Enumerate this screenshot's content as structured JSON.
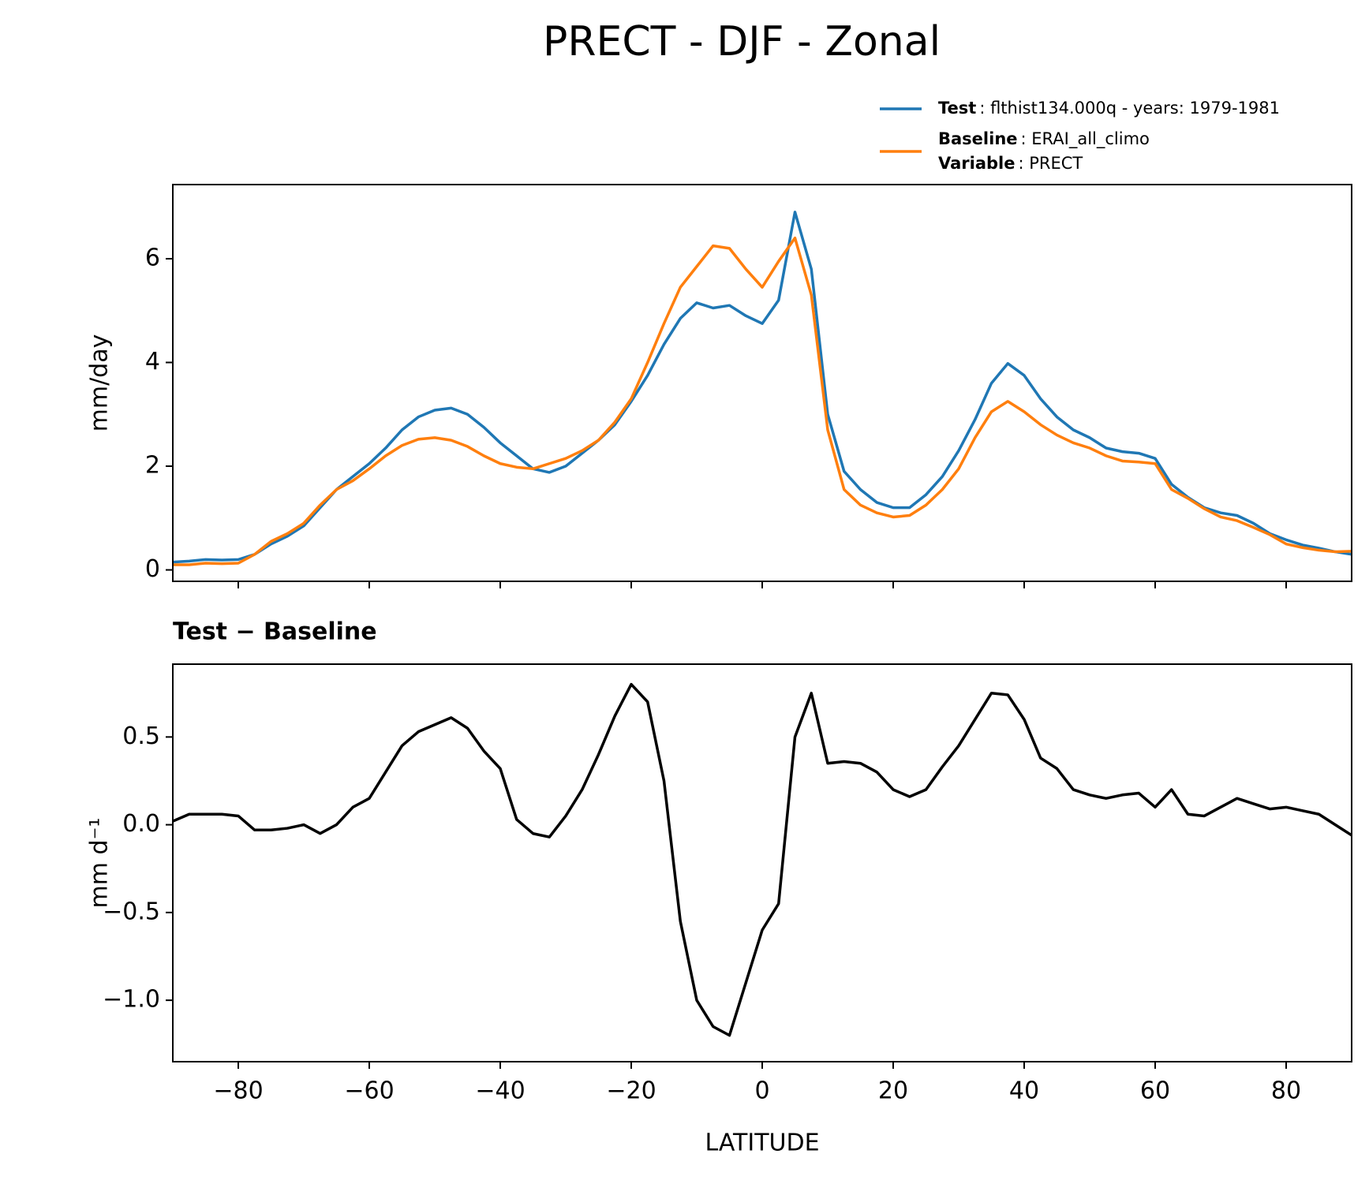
{
  "title": "PRECT - DJF - Zonal",
  "chart_data": [
    {
      "type": "line",
      "legend_corner": "upper right outside",
      "legend_extra": {
        "name": "Variable",
        "text": ": PRECT"
      },
      "ylabel": "mm/day",
      "x": [
        -90,
        -87.5,
        -85,
        -82.5,
        -80,
        -77.5,
        -75,
        -72.5,
        -70,
        -67.5,
        -65,
        -62.5,
        -60,
        -57.5,
        -55,
        -52.5,
        -50,
        -47.5,
        -45,
        -42.5,
        -40,
        -37.5,
        -35,
        -32.5,
        -30,
        -27.5,
        -25,
        -22.5,
        -20,
        -17.5,
        -15,
        -12.5,
        -10,
        -7.5,
        -5,
        -2.5,
        0,
        2.5,
        5,
        7.5,
        10,
        12.5,
        15,
        17.5,
        20,
        22.5,
        25,
        27.5,
        30,
        32.5,
        35,
        37.5,
        40,
        42.5,
        45,
        47.5,
        50,
        52.5,
        55,
        57.5,
        60,
        62.5,
        65,
        67.5,
        70,
        72.5,
        75,
        77.5,
        80,
        82.5,
        85,
        87.5,
        90
      ],
      "series": [
        {
          "name": "Test",
          "legend_text": ": flthist134.000q - years: 1979-1981",
          "color": "#1f77b4",
          "values": [
            0.15,
            0.17,
            0.2,
            0.19,
            0.2,
            0.3,
            0.5,
            0.65,
            0.85,
            1.2,
            1.55,
            1.8,
            2.05,
            2.35,
            2.7,
            2.95,
            3.08,
            3.12,
            3.0,
            2.75,
            2.45,
            2.2,
            1.95,
            1.88,
            2.0,
            2.25,
            2.5,
            2.8,
            3.25,
            3.75,
            4.35,
            4.85,
            5.15,
            5.05,
            5.1,
            4.9,
            4.75,
            5.2,
            6.9,
            5.8,
            3.0,
            1.9,
            1.55,
            1.3,
            1.2,
            1.2,
            1.45,
            1.8,
            2.3,
            2.9,
            3.6,
            3.98,
            3.75,
            3.3,
            2.95,
            2.7,
            2.55,
            2.35,
            2.28,
            2.25,
            2.15,
            1.65,
            1.4,
            1.2,
            1.1,
            1.05,
            0.9,
            0.7,
            0.58,
            0.48,
            0.42,
            0.35,
            0.3
          ]
        },
        {
          "name": "Baseline",
          "legend_text": ": ERAI_all_climo",
          "color": "#ff7f0e",
          "values": [
            0.1,
            0.1,
            0.13,
            0.12,
            0.13,
            0.3,
            0.55,
            0.7,
            0.9,
            1.25,
            1.55,
            1.72,
            1.95,
            2.2,
            2.4,
            2.52,
            2.55,
            2.5,
            2.38,
            2.2,
            2.05,
            1.98,
            1.95,
            2.05,
            2.15,
            2.3,
            2.5,
            2.85,
            3.3,
            4.0,
            4.75,
            5.45,
            5.85,
            6.25,
            6.2,
            5.8,
            5.45,
            5.95,
            6.4,
            5.3,
            2.7,
            1.55,
            1.25,
            1.1,
            1.02,
            1.05,
            1.25,
            1.55,
            1.95,
            2.55,
            3.05,
            3.25,
            3.05,
            2.8,
            2.6,
            2.45,
            2.35,
            2.2,
            2.1,
            2.08,
            2.05,
            1.55,
            1.38,
            1.18,
            1.02,
            0.95,
            0.82,
            0.68,
            0.5,
            0.43,
            0.38,
            0.35,
            0.36
          ]
        }
      ],
      "xlim": [
        -90,
        90
      ],
      "xticks": [
        -80,
        -60,
        -40,
        -20,
        0,
        20,
        40,
        60,
        80
      ],
      "ylim": [
        -0.22,
        7.43
      ],
      "yticks": [
        0,
        2,
        4,
        6
      ]
    },
    {
      "type": "line",
      "title": "Test − Baseline",
      "ylabel": "mm d⁻¹",
      "xlabel": "LATITUDE",
      "x": [
        -90,
        -87.5,
        -85,
        -82.5,
        -80,
        -77.5,
        -75,
        -72.5,
        -70,
        -67.5,
        -65,
        -62.5,
        -60,
        -57.5,
        -55,
        -52.5,
        -50,
        -47.5,
        -45,
        -42.5,
        -40,
        -37.5,
        -35,
        -32.5,
        -30,
        -27.5,
        -25,
        -22.5,
        -20,
        -17.5,
        -15,
        -12.5,
        -10,
        -7.5,
        -5,
        -2.5,
        0,
        2.5,
        5,
        7.5,
        10,
        12.5,
        15,
        17.5,
        20,
        22.5,
        25,
        27.5,
        30,
        32.5,
        35,
        37.5,
        40,
        42.5,
        45,
        47.5,
        50,
        52.5,
        55,
        57.5,
        60,
        62.5,
        65,
        67.5,
        70,
        72.5,
        75,
        77.5,
        80,
        82.5,
        85,
        87.5,
        90
      ],
      "color": "#000000",
      "values": [
        0.02,
        0.06,
        0.06,
        0.06,
        0.05,
        -0.03,
        -0.03,
        -0.02,
        0.0,
        -0.05,
        0.0,
        0.1,
        0.15,
        0.3,
        0.45,
        0.53,
        0.57,
        0.61,
        0.55,
        0.42,
        0.32,
        0.03,
        -0.05,
        -0.07,
        0.05,
        0.2,
        0.4,
        0.62,
        0.8,
        0.7,
        0.25,
        -0.55,
        -1.0,
        -1.15,
        -1.2,
        -0.9,
        -0.6,
        -0.45,
        0.5,
        0.75,
        0.35,
        0.36,
        0.35,
        0.3,
        0.2,
        0.16,
        0.2,
        0.33,
        0.45,
        0.6,
        0.75,
        0.74,
        0.6,
        0.38,
        0.32,
        0.2,
        0.17,
        0.15,
        0.17,
        0.18,
        0.1,
        0.2,
        0.06,
        0.05,
        0.1,
        0.15,
        0.12,
        0.09,
        0.1,
        0.08,
        0.06,
        0.0,
        -0.06
      ],
      "xlim": [
        -90,
        90
      ],
      "xticks": [
        {
          "value": -80,
          "label": "−80"
        },
        {
          "value": -60,
          "label": "−60"
        },
        {
          "value": -40,
          "label": "−40"
        },
        {
          "value": -20,
          "label": "−20"
        },
        0,
        20,
        40,
        60,
        80
      ],
      "ylim": [
        -1.35,
        0.915
      ],
      "yticks": [
        {
          "value": -1.0,
          "label": "−1.0"
        },
        {
          "value": -0.5,
          "label": "−0.5"
        },
        {
          "value": 0,
          "label": "0.0"
        },
        0.5
      ]
    }
  ]
}
